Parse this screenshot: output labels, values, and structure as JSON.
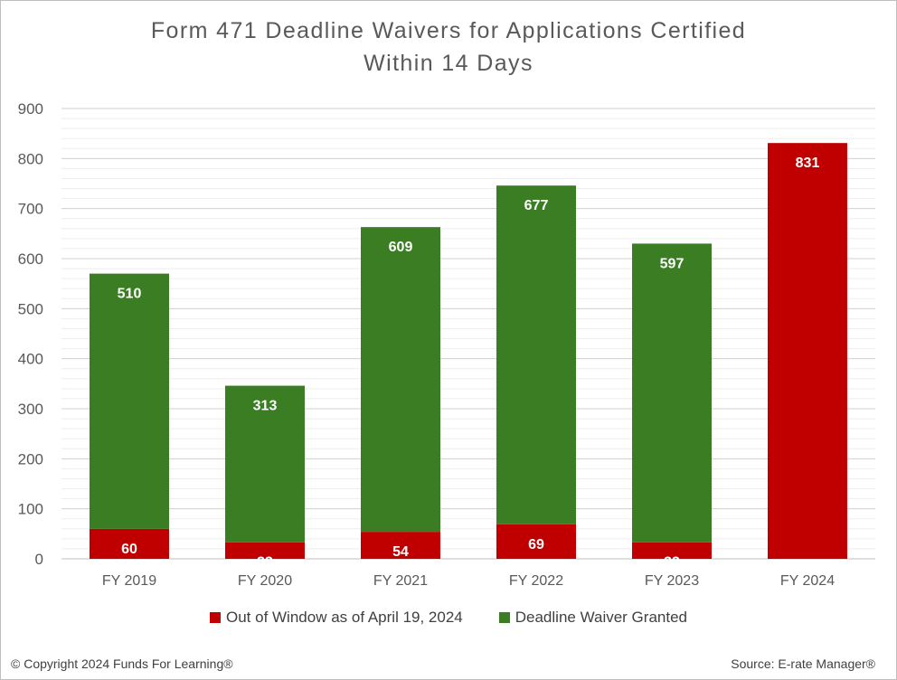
{
  "chart_data": {
    "type": "bar",
    "stacked": true,
    "title_lines": [
      "Form 471 Deadline Waivers for Applications Certified",
      "Within 14 Days"
    ],
    "categories": [
      "FY 2019",
      "FY 2020",
      "FY 2021",
      "FY 2022",
      "FY 2023",
      "FY 2024"
    ],
    "series": [
      {
        "name": "Out of Window as of April 19, 2024",
        "color": "#c00000",
        "values": [
          60,
          33,
          54,
          69,
          33,
          831
        ]
      },
      {
        "name": "Deadline Waiver Granted",
        "color": "#3a7d22",
        "values": [
          510,
          313,
          609,
          677,
          597,
          0
        ]
      }
    ],
    "ylim": [
      0,
      900
    ],
    "yticks": [
      0,
      100,
      200,
      300,
      400,
      500,
      600,
      700,
      800,
      900
    ],
    "grid": true,
    "legend_position": "bottom"
  },
  "footer": {
    "copyright": "© Copyright 2024 Funds For Learning®",
    "source": "Source: E-rate Manager®"
  }
}
